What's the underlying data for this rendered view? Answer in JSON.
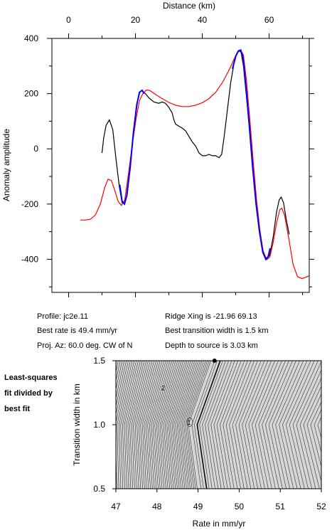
{
  "chart_data": [
    {
      "type": "line",
      "xlabel": "Distance (km)",
      "ylabel": "Anomaly amplitude",
      "xlim": [
        -5,
        72
      ],
      "ylim": [
        -520,
        400
      ],
      "x_ticks": [
        0,
        20,
        40,
        60
      ],
      "y_ticks": [
        400,
        200,
        0,
        -200,
        -400
      ],
      "x_ticks_minor": [
        10,
        30,
        50,
        70
      ],
      "y_ticks_minor": [
        300,
        100,
        -100,
        -300,
        -500
      ],
      "x_axis_position": "top",
      "grid": false,
      "series": [
        {
          "color": "#000000",
          "points": [
            [
              10,
              -15
            ],
            [
              10.5,
              40
            ],
            [
              11.2,
              85
            ],
            [
              12.2,
              105
            ],
            [
              13.2,
              70
            ],
            [
              14.2,
              -40
            ],
            [
              15.2,
              -140
            ],
            [
              16,
              -195
            ],
            [
              16.8,
              -200
            ],
            [
              17.6,
              -160
            ],
            [
              18.6,
              -40
            ],
            [
              19.6,
              80
            ],
            [
              20.6,
              170
            ],
            [
              21.3,
              205
            ],
            [
              22,
              212
            ],
            [
              23,
              200
            ],
            [
              24,
              185
            ],
            [
              25.5,
              170
            ],
            [
              27,
              165
            ],
            [
              28,
              170
            ],
            [
              29,
              165
            ],
            [
              30,
              150
            ],
            [
              31,
              130
            ],
            [
              31.5,
              105
            ],
            [
              32,
              90
            ],
            [
              33,
              82
            ],
            [
              34,
              75
            ],
            [
              35,
              65
            ],
            [
              36,
              45
            ],
            [
              37,
              25
            ],
            [
              38,
              10
            ],
            [
              39,
              -15
            ],
            [
              40,
              -25
            ],
            [
              41,
              -25
            ],
            [
              42,
              -20
            ],
            [
              43,
              -25
            ],
            [
              44,
              -25
            ],
            [
              45,
              -32
            ],
            [
              45.8,
              -20
            ],
            [
              46.5,
              40
            ],
            [
              47.5,
              140
            ],
            [
              48.5,
              240
            ],
            [
              49.5,
              310
            ],
            [
              50.3,
              345
            ],
            [
              51,
              355
            ],
            [
              51.6,
              350
            ],
            [
              52.3,
              300
            ],
            [
              53.2,
              190
            ],
            [
              54.2,
              60
            ],
            [
              55.2,
              -80
            ],
            [
              56.2,
              -200
            ],
            [
              57.2,
              -300
            ],
            [
              58.2,
              -370
            ],
            [
              59.2,
              -400
            ],
            [
              60.2,
              -385
            ],
            [
              61.2,
              -320
            ],
            [
              62.2,
              -230
            ],
            [
              63,
              -185
            ],
            [
              63.6,
              -175
            ],
            [
              64.3,
              -195
            ],
            [
              65.1,
              -255
            ],
            [
              66,
              -310
            ]
          ]
        },
        {
          "color": "#ff0000",
          "points": [
            [
              3.5,
              -258
            ],
            [
              5,
              -258
            ],
            [
              6.5,
              -255
            ],
            [
              8,
              -240
            ],
            [
              9.5,
              -200
            ],
            [
              10.8,
              -140
            ],
            [
              11.8,
              -110
            ],
            [
              12.8,
              -115
            ],
            [
              13.8,
              -150
            ],
            [
              14.8,
              -190
            ],
            [
              15.8,
              -205
            ],
            [
              16.8,
              -185
            ],
            [
              17.8,
              -100
            ],
            [
              19,
              10
            ],
            [
              20.2,
              110
            ],
            [
              21.2,
              175
            ],
            [
              22.2,
              200
            ],
            [
              23.2,
              213
            ],
            [
              24.2,
              212
            ],
            [
              25.2,
              204
            ],
            [
              26.5,
              193
            ],
            [
              28,
              182
            ],
            [
              30,
              168
            ],
            [
              32,
              158
            ],
            [
              34,
              153
            ],
            [
              36,
              153
            ],
            [
              38,
              158
            ],
            [
              40,
              167
            ],
            [
              42,
              182
            ],
            [
              44,
              205
            ],
            [
              46,
              240
            ],
            [
              48,
              285
            ],
            [
              49.5,
              325
            ],
            [
              50.5,
              350
            ],
            [
              51.5,
              358
            ],
            [
              52.3,
              340
            ],
            [
              53.2,
              250
            ],
            [
              54.2,
              110
            ],
            [
              55.2,
              -40
            ],
            [
              56.2,
              -180
            ],
            [
              57.2,
              -290
            ],
            [
              58.2,
              -370
            ],
            [
              59.2,
              -402
            ],
            [
              60.2,
              -393
            ],
            [
              61.2,
              -340
            ],
            [
              62.2,
              -270
            ],
            [
              63.2,
              -220
            ],
            [
              63.8,
              -215
            ],
            [
              64.6,
              -240
            ],
            [
              65.8,
              -320
            ],
            [
              67.2,
              -420
            ],
            [
              68.5,
              -463
            ],
            [
              69.8,
              -470
            ],
            [
              71,
              -465
            ],
            [
              72,
              -460
            ]
          ]
        },
        {
          "color": "#0000ff",
          "points": [
            [
              15.3,
              -130
            ],
            [
              16,
              -190
            ],
            [
              16.7,
              -200
            ],
            [
              17.4,
              -170
            ],
            [
              18.4,
              -70
            ],
            [
              19.4,
              60
            ],
            [
              20.4,
              160
            ],
            [
              21.2,
              205
            ],
            [
              22,
              212
            ],
            [
              22.6,
              200
            ],
            [
              49,
              290
            ],
            [
              50,
              335
            ],
            [
              50.8,
              355
            ],
            [
              51.5,
              358
            ],
            [
              52.2,
              330
            ],
            [
              53.1,
              220
            ],
            [
              54.1,
              80
            ],
            [
              55.1,
              -70
            ],
            [
              56.1,
              -200
            ],
            [
              57.1,
              -300
            ],
            [
              58.1,
              -375
            ],
            [
              59,
              -400
            ],
            [
              59.7,
              -390
            ],
            [
              60.3,
              -360
            ]
          ]
        }
      ]
    },
    {
      "type": "heatmap",
      "xlabel": "Rate in mm/yr",
      "ylabel": "Transition width in km",
      "xlim": [
        47,
        52
      ],
      "ylim": [
        0.5,
        1.5
      ],
      "x_ticks": [
        47,
        48,
        49,
        50,
        51,
        52
      ],
      "y_ticks": [
        0.5,
        1.0,
        1.5
      ],
      "x_tick_labels": [
        "47",
        "48",
        "49",
        "50",
        "51",
        "52"
      ],
      "y_tick_labels": [
        "0.5",
        "1.0",
        "1.5"
      ],
      "contour_labels": [
        {
          "text": "2",
          "x": 48.15,
          "y": 1.27
        },
        {
          "text": "1",
          "x": 48.78,
          "y": 1.0
        }
      ],
      "best_fit_point": {
        "x": 49.4,
        "y": 1.5
      },
      "minimum": {
        "x": 48.8,
        "y": 1.0
      }
    }
  ],
  "info": {
    "profile": "Profile: jc2e.11",
    "best_rate": "Best rate is 49.4 mm/yr",
    "proj_az": "Proj. Az: 60.0 deg. CW of N",
    "ridge_xing": "Ridge Xing is -21.96 69.13",
    "best_width": "Best transition width is 1.5 km",
    "depth": "Depth to source is   3.03 km"
  },
  "side_note": [
    "Least-squares",
    "fit divided by",
    "best fit"
  ]
}
